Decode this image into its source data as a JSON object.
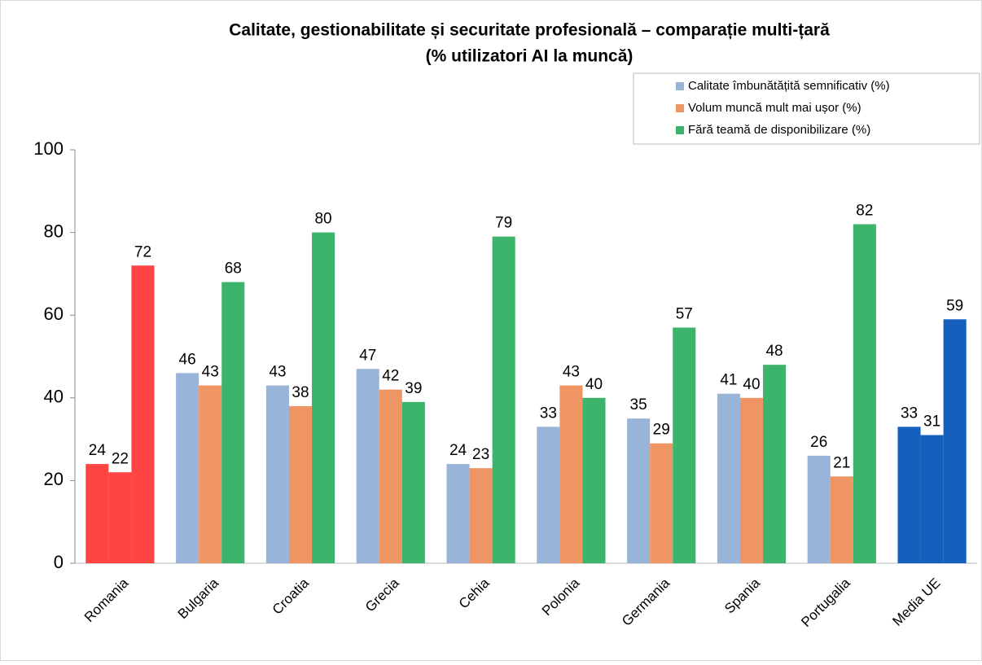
{
  "chart_data": {
    "type": "bar",
    "title": "Calitate, gestionabilitate și securitate profesională – comparație multi-țară",
    "subtitle": "(% utilizatori AI la muncă)",
    "categories": [
      "Romania",
      "Bulgaria",
      "Croatia",
      "Grecia",
      "Cehia",
      "Polonia",
      "Germania",
      "Spania",
      "Portugalia",
      "Media UE"
    ],
    "series": [
      {
        "name": "Calitate îmbunătățită semnificativ (%)",
        "color": "#98b4d9",
        "colors": [
          "#ff4444",
          "#98b4d9",
          "#98b4d9",
          "#98b4d9",
          "#98b4d9",
          "#98b4d9",
          "#98b4d9",
          "#98b4d9",
          "#98b4d9",
          "#1560bd"
        ],
        "values": [
          24,
          46,
          43,
          47,
          24,
          33,
          35,
          41,
          26,
          33
        ]
      },
      {
        "name": "Volum muncă mult mai ușor (%)",
        "color": "#ef9463",
        "colors": [
          "#ff4444",
          "#ef9463",
          "#ef9463",
          "#ef9463",
          "#ef9463",
          "#ef9463",
          "#ef9463",
          "#ef9463",
          "#ef9463",
          "#1560bd"
        ],
        "values": [
          22,
          43,
          38,
          42,
          23,
          43,
          29,
          40,
          21,
          31
        ]
      },
      {
        "name": "Fără teamă de disponibilizare (%)",
        "color": "#3cb46b",
        "colors": [
          "#ff4444",
          "#3cb46b",
          "#3cb46b",
          "#3cb46b",
          "#3cb46b",
          "#3cb46b",
          "#3cb46b",
          "#3cb46b",
          "#3cb46b",
          "#1560bd"
        ],
        "values": [
          72,
          68,
          80,
          39,
          79,
          40,
          57,
          48,
          82,
          59
        ]
      }
    ],
    "ylim": [
      0,
      100
    ],
    "yticks": [
      0,
      20,
      40,
      60,
      80,
      100
    ],
    "grid": false,
    "legend": "top-right"
  }
}
